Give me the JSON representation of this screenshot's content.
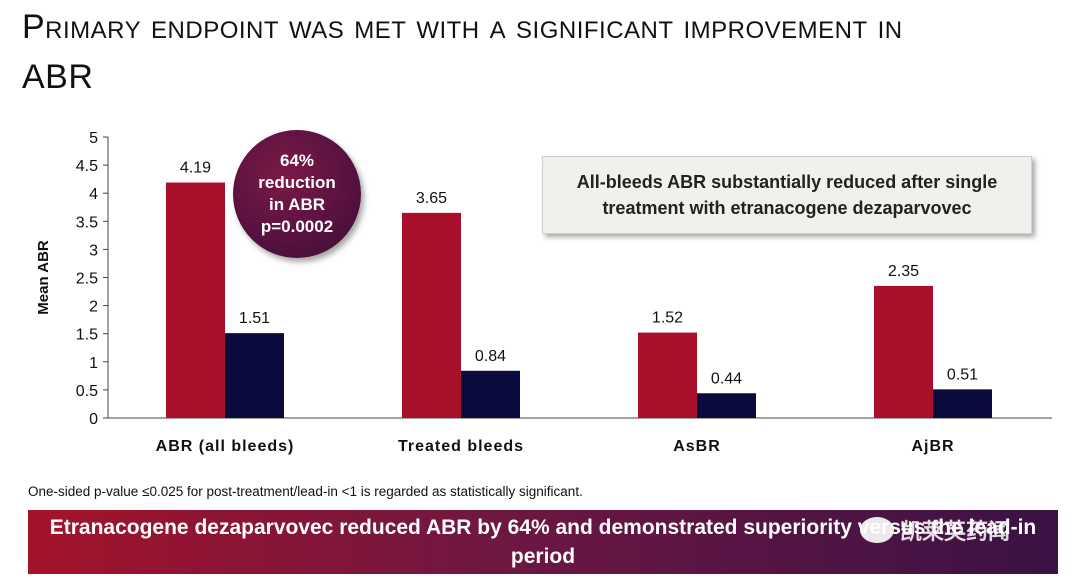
{
  "title": "Primary endpoint was met with a significant improvement in ABR",
  "callout": {
    "line1": "All-bleeds ABR substantially reduced after single",
    "line2": "treatment with etranacogene dezaparvovec"
  },
  "circle_badge": {
    "line1": "64%",
    "line2": "reduction",
    "line3": "in ABR",
    "line4": "p=0.0002"
  },
  "footnote": "One-sided p-value ≤0.025 for post-treatment/lead-in <1 is regarded as statistically significant.",
  "banner": "Etranacogene dezaparvovec reduced ABR by 64% and demonstrated superiority versus the lead-in period",
  "watermark": "凯莱英药闻",
  "colors": {
    "series1": "#a8102a",
    "series2": "#0a0a3c",
    "banner_start": "#a3132a",
    "banner_end": "#3a1245"
  },
  "chart_data": {
    "type": "bar",
    "categories": [
      "ABR (all bleeds)",
      "Treated bleeds",
      "AsBR",
      "AjBR"
    ],
    "series": [
      {
        "values": [
          4.19,
          3.65,
          1.52,
          2.35
        ],
        "labels": [
          "4.19",
          "3.65",
          "1.52",
          "2.35"
        ]
      },
      {
        "values": [
          1.51,
          0.84,
          0.44,
          0.51
        ],
        "labels": [
          "1.51",
          "0.84",
          "0.44",
          "0.51"
        ]
      }
    ],
    "ylabel": "Mean ABR",
    "ylim": [
      0,
      5
    ],
    "yticks": [
      0,
      0.5,
      1,
      1.5,
      2,
      2.5,
      3,
      3.5,
      4,
      4.5,
      5
    ],
    "ytick_labels": [
      "0",
      "0.5",
      "1",
      "1.5",
      "2",
      "2.5",
      "3",
      "3.5",
      "4",
      "4.5",
      "5"
    ],
    "grid": false,
    "legend": "none"
  }
}
